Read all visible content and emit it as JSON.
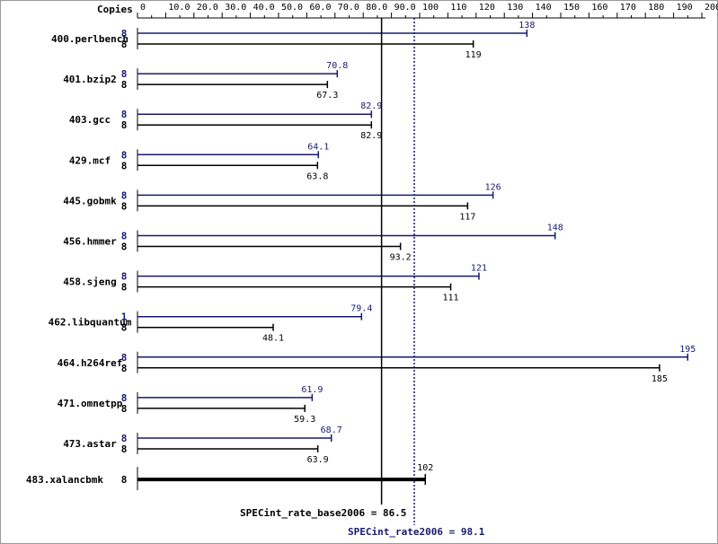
{
  "chart_data": {
    "type": "bar",
    "header_label": "Copies",
    "x_ticks": [
      "0",
      "10.0",
      "20.0",
      "30.0",
      "40.0",
      "50.0",
      "60.0",
      "70.0",
      "80.0",
      "90.0",
      "100",
      "110",
      "120",
      "130",
      "140",
      "150",
      "160",
      "170",
      "180",
      "190",
      "200"
    ],
    "xlim": [
      0,
      200
    ],
    "series": [
      {
        "name": "SPECint_rate2006",
        "color": "#191970"
      },
      {
        "name": "SPECint_rate_base2006",
        "color": "#000000"
      }
    ],
    "benchmarks": [
      {
        "name": "400.perlbench",
        "peak_copies": "8",
        "peak_value": 138,
        "peak_label": "138",
        "base_copies": "8",
        "base_value": 119,
        "base_label": "119"
      },
      {
        "name": "401.bzip2",
        "peak_copies": "8",
        "peak_value": 70.8,
        "peak_label": "70.8",
        "base_copies": "8",
        "base_value": 67.3,
        "base_label": "67.3"
      },
      {
        "name": "403.gcc",
        "peak_copies": "8",
        "peak_value": 82.9,
        "peak_label": "82.9",
        "base_copies": "8",
        "base_value": 82.9,
        "base_label": "82.9"
      },
      {
        "name": "429.mcf",
        "peak_copies": "8",
        "peak_value": 64.1,
        "peak_label": "64.1",
        "base_copies": "8",
        "base_value": 63.8,
        "base_label": "63.8"
      },
      {
        "name": "445.gobmk",
        "peak_copies": "8",
        "peak_value": 126,
        "peak_label": "126",
        "base_copies": "8",
        "base_value": 117,
        "base_label": "117"
      },
      {
        "name": "456.hmmer",
        "peak_copies": "8",
        "peak_value": 148,
        "peak_label": "148",
        "base_copies": "8",
        "base_value": 93.2,
        "base_label": "93.2"
      },
      {
        "name": "458.sjeng",
        "peak_copies": "8",
        "peak_value": 121,
        "peak_label": "121",
        "base_copies": "8",
        "base_value": 111,
        "base_label": "111"
      },
      {
        "name": "462.libquantum",
        "peak_copies": "1",
        "peak_value": 79.4,
        "peak_label": "79.4",
        "base_copies": "8",
        "base_value": 48.1,
        "base_label": "48.1"
      },
      {
        "name": "464.h264ref",
        "peak_copies": "8",
        "peak_value": 195,
        "peak_label": "195",
        "base_copies": "8",
        "base_value": 185,
        "base_label": "185"
      },
      {
        "name": "471.omnetpp",
        "peak_copies": "8",
        "peak_value": 61.9,
        "peak_label": "61.9",
        "base_copies": "8",
        "base_value": 59.3,
        "base_label": "59.3"
      },
      {
        "name": "473.astar",
        "peak_copies": "8",
        "peak_value": 68.7,
        "peak_label": "68.7",
        "base_copies": "8",
        "base_value": 63.9,
        "base_label": "63.9"
      },
      {
        "name": "483.xalancbmk",
        "combined": true,
        "base_copies": "8",
        "base_value": 102,
        "base_label": "102"
      }
    ],
    "summary": {
      "base_label": "SPECint_rate_base2006 = 86.5",
      "base_value": 86.5,
      "peak_label": "SPECint_rate2006 = 98.1",
      "peak_value": 98.1
    },
    "colors": {
      "peak": "#191970",
      "base": "#000000"
    }
  }
}
